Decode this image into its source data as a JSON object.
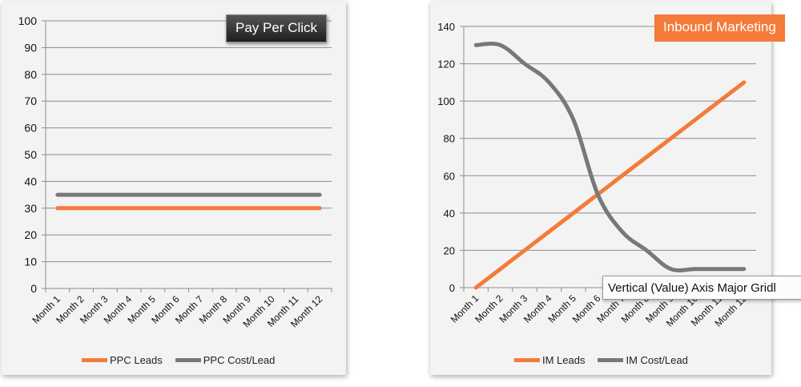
{
  "colors": {
    "accent_orange": "#f47b3a",
    "series_gray": "#787878",
    "grid": "#8c8c8c"
  },
  "chart_data": [
    {
      "type": "line",
      "title": "Pay Per Click",
      "categories": [
        "Month 1",
        "Month 2",
        "Month 3",
        "Month 4",
        "Month 5",
        "Month 6",
        "Month 7",
        "Month 8",
        "Month 9",
        "Month 10",
        "Month 11",
        "Month 12"
      ],
      "series": [
        {
          "name": "PPC Leads",
          "color": "#f47b3a",
          "values": [
            30,
            30,
            30,
            30,
            30,
            30,
            30,
            30,
            30,
            30,
            30,
            30
          ]
        },
        {
          "name": "PPC Cost/Lead",
          "color": "#787878",
          "values": [
            35,
            35,
            35,
            35,
            35,
            35,
            35,
            35,
            35,
            35,
            35,
            35
          ]
        }
      ],
      "ylim": [
        0,
        100
      ],
      "yticks": [
        0,
        10,
        20,
        30,
        40,
        50,
        60,
        70,
        80,
        90,
        100
      ],
      "grid": true,
      "legend_position": "bottom"
    },
    {
      "type": "line",
      "title": "Inbound Marketing",
      "categories": [
        "Month 1",
        "Month 2",
        "Month 3",
        "Month 4",
        "Month 5",
        "Month 6",
        "Month 7",
        "Month 8",
        "Month 9",
        "Month 10",
        "Month 11",
        "Month 12"
      ],
      "series": [
        {
          "name": "IM Leads",
          "color": "#f47b3a",
          "values": [
            0,
            10,
            20,
            30,
            40,
            50,
            60,
            70,
            80,
            90,
            100,
            110
          ]
        },
        {
          "name": "IM Cost/Lead",
          "color": "#787878",
          "values": [
            130,
            130,
            120,
            110,
            90,
            50,
            30,
            20,
            10,
            10,
            10,
            10
          ]
        }
      ],
      "ylim": [
        0,
        140
      ],
      "yticks": [
        0,
        20,
        40,
        60,
        80,
        100,
        120,
        140
      ],
      "grid": true,
      "legend_position": "bottom"
    }
  ],
  "tooltip": {
    "text": "Vertical (Value) Axis Major Gridl"
  }
}
